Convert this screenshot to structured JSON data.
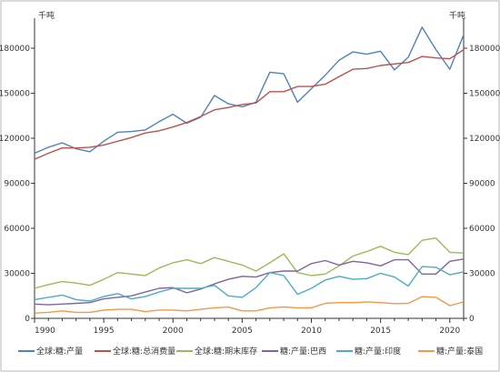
{
  "chart_data": {
    "type": "line",
    "title": "",
    "xlabel": "",
    "ylabel": "",
    "unit_left": "千吨",
    "unit_right": "千吨",
    "xlim": [
      1990,
      2021
    ],
    "ylim": [
      0,
      200000
    ],
    "x_ticks": [
      1990,
      1995,
      2000,
      2005,
      2010,
      2015,
      2020
    ],
    "y_ticks": [
      0,
      30000,
      60000,
      90000,
      120000,
      150000,
      180000
    ],
    "grid": false,
    "legend_position": "bottom",
    "x": [
      1990,
      1991,
      1992,
      1993,
      1994,
      1995,
      1996,
      1997,
      1998,
      1999,
      2000,
      2001,
      2002,
      2003,
      2004,
      2005,
      2006,
      2007,
      2008,
      2009,
      2010,
      2011,
      2012,
      2013,
      2014,
      2015,
      2016,
      2017,
      2018,
      2019,
      2020,
      2021
    ],
    "series": [
      {
        "name": "全球:糖:产量",
        "color": "#4f81bd",
        "values": [
          110000,
          114000,
          117000,
          113000,
          111000,
          118000,
          124000,
          124500,
          125500,
          131000,
          136000,
          130000,
          134000,
          148500,
          143000,
          141000,
          144000,
          164000,
          163000,
          144000,
          153000,
          162000,
          172000,
          177500,
          176000,
          178000,
          165500,
          174000,
          194000,
          179000,
          166000,
          189000
        ]
      },
      {
        "name": "全球:糖:总消费量",
        "color": "#c0504d",
        "values": [
          106000,
          110000,
          113500,
          113500,
          114000,
          115500,
          118000,
          120500,
          123500,
          125000,
          127500,
          130500,
          134500,
          139000,
          140500,
          142500,
          143500,
          151000,
          151000,
          154500,
          154500,
          156000,
          161000,
          166000,
          166500,
          168500,
          169500,
          170500,
          174500,
          173500,
          173000,
          179000
        ]
      },
      {
        "name": "全球:糖:期末库存",
        "color": "#9bbb59",
        "values": [
          20000,
          22500,
          24500,
          23500,
          22000,
          26000,
          30500,
          29500,
          28500,
          33500,
          37000,
          39000,
          36500,
          40500,
          38000,
          35500,
          31500,
          37000,
          43000,
          30500,
          28500,
          29500,
          35000,
          41500,
          44500,
          48000,
          44000,
          42500,
          52000,
          53500,
          44000,
          43500
        ]
      },
      {
        "name": "糖:产量:巴西",
        "color": "#8064a2",
        "values": [
          9500,
          9000,
          9500,
          10000,
          10500,
          13000,
          14000,
          15000,
          17500,
          20000,
          20500,
          17000,
          19500,
          23000,
          26000,
          28000,
          27500,
          30500,
          31500,
          31500,
          36500,
          38500,
          35500,
          38000,
          37000,
          35000,
          39000,
          39000,
          29500,
          29500,
          38000,
          39500
        ]
      },
      {
        "name": "糖:产量:印度",
        "color": "#4bacc6",
        "values": [
          12500,
          14000,
          15500,
          12500,
          11500,
          14500,
          16500,
          13000,
          14500,
          17500,
          20000,
          20000,
          20000,
          22000,
          15000,
          14000,
          20500,
          30500,
          28500,
          16000,
          20000,
          25500,
          28000,
          26000,
          26500,
          30000,
          27500,
          21500,
          34500,
          34000,
          29000,
          31000
        ]
      },
      {
        "name": "糖:产量:泰国",
        "color": "#f79646",
        "values": [
          3500,
          4000,
          5000,
          4000,
          4000,
          5500,
          6000,
          6000,
          4500,
          5500,
          5500,
          5000,
          6000,
          7000,
          7500,
          5000,
          5000,
          7000,
          7500,
          7000,
          7000,
          10000,
          10500,
          10500,
          11000,
          10500,
          9800,
          10000,
          14500,
          14000,
          8500,
          11000
        ]
      }
    ]
  }
}
